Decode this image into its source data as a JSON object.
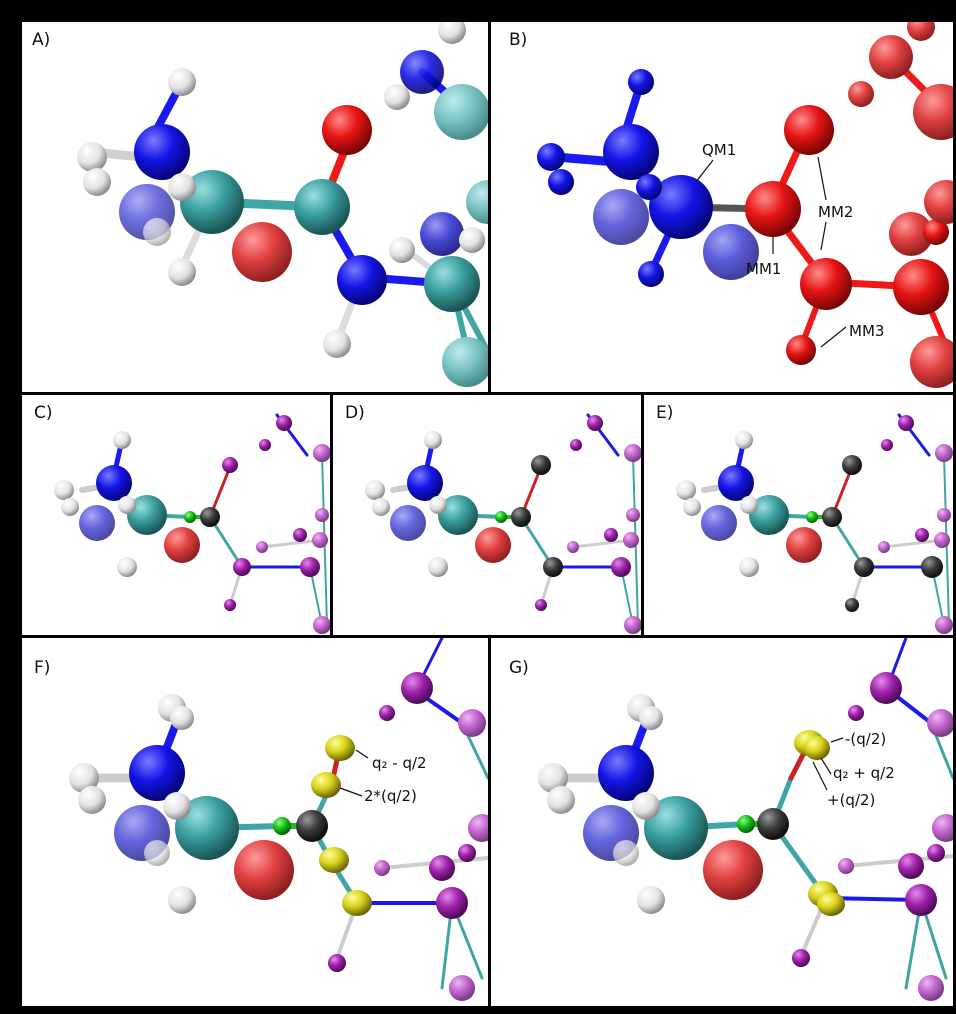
{
  "panels": {
    "A": {
      "label": "A)"
    },
    "B": {
      "label": "B)",
      "annotations": {
        "qm1": "QM1",
        "mm1": "MM1",
        "mm2": "MM2",
        "mm3": "MM3"
      }
    },
    "C": {
      "label": "C)"
    },
    "D": {
      "label": "D)"
    },
    "E": {
      "label": "E)"
    },
    "F": {
      "label": "F)",
      "annotations": {
        "charge_top": "q₂ - q/2",
        "charge_mid": "2*(q/2)"
      }
    },
    "G": {
      "label": "G)",
      "annotations": {
        "charge_minus": "-(q/2)",
        "charge_center": "q₂ + q/2",
        "charge_plus": "+(q/2)"
      }
    }
  },
  "colors": {
    "nitrogen": "#1a1aee",
    "oxygen": "#ee1a1a",
    "carbon_teal": "#3fa5a5",
    "hydrogen": "#ececec",
    "link_green": "#22bb22",
    "dummy_gray": "#3a3a3a",
    "mm_purple": "#9b2fa8",
    "charge_yellow": "#d8d21a"
  }
}
